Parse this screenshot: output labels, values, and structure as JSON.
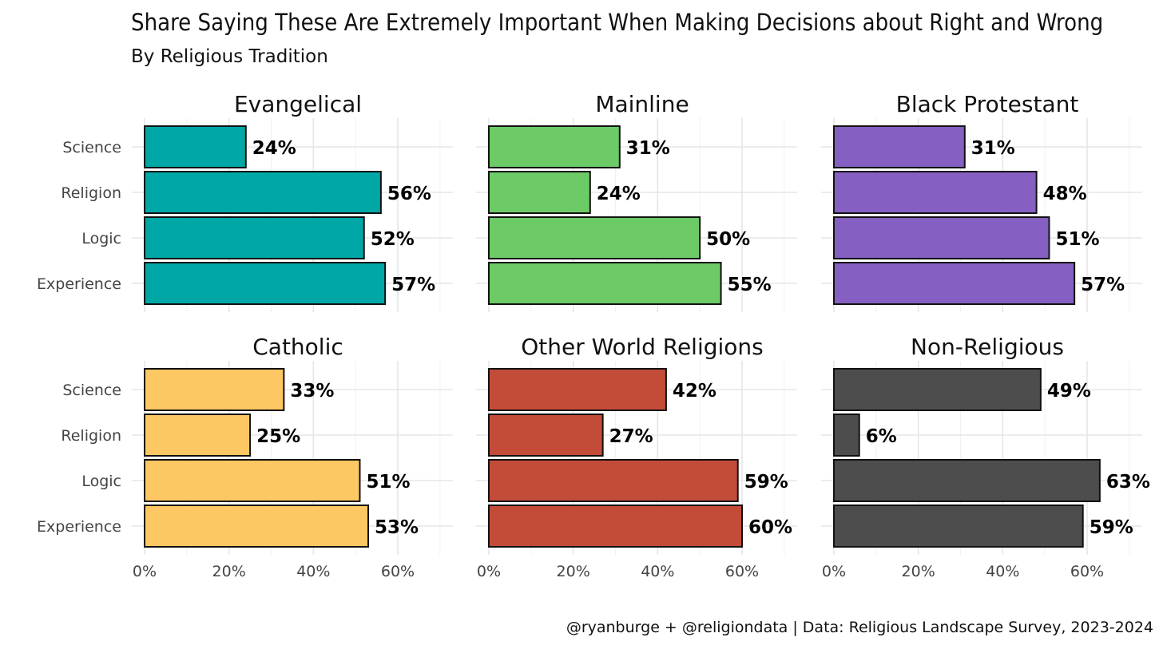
{
  "chart_data": {
    "type": "bar",
    "orientation": "horizontal",
    "title": "Share Saying These Are Extremely Important When Making Decisions about Right and Wrong",
    "subtitle": "By Religious Tradition",
    "caption": "@ryanburge + @religiondata | Data: Religious Landscape Survey, 2023-2024",
    "categories": [
      "Science",
      "Religion",
      "Logic",
      "Experience"
    ],
    "xlim": [
      0,
      70
    ],
    "xticks": [
      0,
      20,
      40,
      60
    ],
    "xtick_labels": [
      "0%",
      "20%",
      "40%",
      "60%"
    ],
    "grid": true,
    "panels": [
      {
        "name": "Evangelical",
        "color": "#00A7A7",
        "values": [
          24,
          56,
          52,
          57
        ],
        "labels": [
          "24%",
          "56%",
          "52%",
          "57%"
        ]
      },
      {
        "name": "Mainline",
        "color": "#6CCB66",
        "values": [
          31,
          24,
          50,
          55
        ],
        "labels": [
          "31%",
          "24%",
          "50%",
          "55%"
        ]
      },
      {
        "name": "Black Protestant",
        "color": "#855FC1",
        "values": [
          31,
          48,
          51,
          57
        ],
        "labels": [
          "31%",
          "48%",
          "51%",
          "57%"
        ]
      },
      {
        "name": "Catholic",
        "color": "#FDC763",
        "values": [
          33,
          25,
          51,
          53
        ],
        "labels": [
          "33%",
          "25%",
          "51%",
          "53%"
        ]
      },
      {
        "name": "Other World Religions",
        "color": "#C34C39",
        "values": [
          42,
          27,
          59,
          60
        ],
        "labels": [
          "42%",
          "27%",
          "59%",
          "60%"
        ]
      },
      {
        "name": "Non-Religious",
        "color": "#4D4D4D",
        "values": [
          49,
          6,
          63,
          59
        ],
        "labels": [
          "49%",
          "6%",
          "63%",
          "59%"
        ]
      }
    ]
  }
}
